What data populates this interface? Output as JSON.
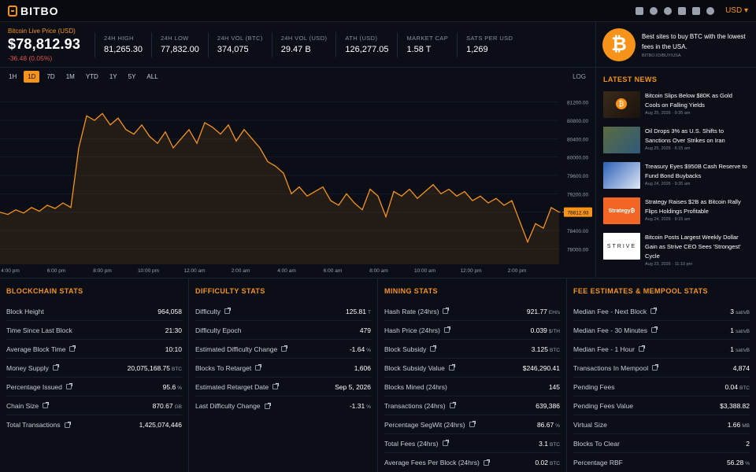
{
  "brand": {
    "name": "BITBO"
  },
  "header": {
    "icons": [
      "calculator-icon",
      "info-icon",
      "link-icon",
      "wrench-icon",
      "chart-icon",
      "gear-icon"
    ],
    "currency": "USD"
  },
  "price": {
    "label": "Bitcoin Live Price (USD)",
    "value": "$78,812.93",
    "change": "-36.48 (0.05%)"
  },
  "stats": [
    {
      "label": "24H HIGH",
      "value": "81,265.30"
    },
    {
      "label": "24H LOW",
      "value": "77,832.00"
    },
    {
      "label": "24H VOL (BTC)",
      "value": "374,075"
    },
    {
      "label": "24H VOL (USD)",
      "value": "29.47 B"
    },
    {
      "label": "ATH (USD)",
      "value": "126,277.05"
    },
    {
      "label": "MARKET CAP",
      "value": "1.58 T"
    },
    {
      "label": "SATS PER USD",
      "value": "1,269"
    }
  ],
  "ranges": [
    "1H",
    "1D",
    "7D",
    "1M",
    "YTD",
    "1Y",
    "5Y",
    "ALL"
  ],
  "active_range": "1D",
  "log_label": "LOG",
  "chart_data": {
    "type": "line",
    "x": [
      0,
      1,
      2,
      3,
      4,
      5,
      6,
      7,
      8,
      9,
      10,
      11,
      12,
      13,
      14,
      15,
      16,
      17,
      18,
      19,
      20,
      21,
      22,
      23,
      24,
      25,
      26,
      27,
      28,
      29,
      30,
      31,
      32,
      33,
      34,
      35,
      36,
      37,
      38,
      39,
      40,
      41,
      42,
      43,
      44,
      45,
      46,
      47,
      48,
      49,
      50,
      51,
      52,
      53,
      54,
      55,
      56,
      57,
      58,
      59,
      60,
      61,
      62,
      63,
      64,
      65,
      66,
      67,
      68,
      69,
      70,
      71
    ],
    "y": [
      78800,
      78750,
      78850,
      78780,
      78900,
      78820,
      78950,
      78880,
      79000,
      78900,
      80200,
      80900,
      80800,
      80950,
      80700,
      80850,
      80600,
      80500,
      80700,
      80450,
      80300,
      80550,
      80200,
      80400,
      80600,
      80300,
      80750,
      80650,
      80500,
      80700,
      80350,
      80600,
      80400,
      80200,
      79900,
      79800,
      79650,
      79200,
      79350,
      79150,
      79250,
      79350,
      79050,
      78950,
      79200,
      79000,
      78850,
      79300,
      79150,
      78700,
      79250,
      79150,
      79300,
      79100,
      79250,
      79400,
      79200,
      79300,
      79150,
      79250,
      79050,
      79150,
      79000,
      79100,
      78950,
      79050,
      78600,
      78150,
      78550,
      78450,
      78900,
      78800
    ],
    "x_ticks": [
      "4:00 pm",
      "6:00 pm",
      "8:00 pm",
      "10:00 pm",
      "12:00 am",
      "2:00 am",
      "4:00 am",
      "6:00 am",
      "8:00 am",
      "10:00 am",
      "12:00 pm",
      "2:00 pm"
    ],
    "y_ticks": [
      "81200.00",
      "80800.00",
      "80400.00",
      "80000.00",
      "79600.00",
      "79200.00",
      "78800.00",
      "78400.00",
      "78000.00"
    ],
    "ylim": [
      77800,
      81400
    ],
    "current_label": "78812.93",
    "line_color": "#f7931a"
  },
  "promo": {
    "title": "Best sites to buy BTC with the lowest fees in the USA.",
    "url": "BITBO.IO/BUY/USA"
  },
  "news": {
    "heading": "LATEST NEWS",
    "items": [
      {
        "title": "Bitcoin Slips Below $80K as Gold Cools on Falling Yields",
        "date": "Aug 25, 2026 · 9:35 am"
      },
      {
        "title": "Oil Drops 3% as U.S. Shifts to Sanctions Over Strikes on Iran",
        "date": "Aug 25, 2026 · 6:15 am"
      },
      {
        "title": "Treasury Eyes $950B Cash Reserve to Fund Bond Buybacks",
        "date": "Aug 24, 2026 · 9:35 am"
      },
      {
        "title": "Strategy Raises $2B as Bitcoin Rally Flips Holdings Profitable",
        "date": "Aug 24, 2026 · 9:15 am",
        "thumb_text": "Strategy₿"
      },
      {
        "title": "Bitcoin Posts Largest Weekly Dollar Gain as Strive CEO Sees 'Strongest' Cycle",
        "date": "Aug 23, 2026 · 11:10 pm",
        "thumb_text": "STRIVE"
      }
    ]
  },
  "panels": [
    {
      "title": "BLOCKCHAIN STATS",
      "rows": [
        {
          "label": "Block Height",
          "value": "964,058",
          "unit": "",
          "link": false
        },
        {
          "label": "Time Since Last Block",
          "value": "21:30",
          "unit": "",
          "link": false
        },
        {
          "label": "Average Block Time",
          "value": "10:10",
          "unit": "",
          "link": true
        },
        {
          "label": "Money Supply",
          "value": "20,075,168.75",
          "unit": "BTC",
          "link": true
        },
        {
          "label": "Percentage Issued",
          "value": "95.6",
          "unit": "%",
          "link": true
        },
        {
          "label": "Chain Size",
          "value": "870.67",
          "unit": "GB",
          "link": true
        },
        {
          "label": "Total Transactions",
          "value": "1,425,074,446",
          "unit": "",
          "link": true
        }
      ]
    },
    {
      "title": "DIFFICULTY STATS",
      "rows": [
        {
          "label": "Difficulty",
          "value": "125.81",
          "unit": "T",
          "link": true
        },
        {
          "label": "Difficulty Epoch",
          "value": "479",
          "unit": "",
          "link": false
        },
        {
          "label": "Estimated Difficulty Change",
          "value": "-1.64",
          "unit": "%",
          "link": true
        },
        {
          "label": "Blocks To Retarget",
          "value": "1,606",
          "unit": "",
          "link": true
        },
        {
          "label": "Estimated Retarget Date",
          "value": "Sep 5, 2026",
          "unit": "",
          "link": true
        },
        {
          "label": "Last Difficulty Change",
          "value": "-1.31",
          "unit": "%",
          "link": true
        }
      ]
    },
    {
      "title": "MINING STATS",
      "rows": [
        {
          "label": "Hash Rate (24hrs)",
          "value": "921.77",
          "unit": "EH/s",
          "link": true
        },
        {
          "label": "Hash Price (24hrs)",
          "value": "0.039",
          "unit": "$/TH",
          "link": true
        },
        {
          "label": "Block Subsidy",
          "value": "3.125",
          "unit": "BTC",
          "link": true
        },
        {
          "label": "Block Subsidy Value",
          "value": "$246,290.41",
          "unit": "",
          "link": true
        },
        {
          "label": "Blocks Mined (24hrs)",
          "value": "145",
          "unit": "",
          "link": false
        },
        {
          "label": "Transactions (24hrs)",
          "value": "639,386",
          "unit": "",
          "link": true
        },
        {
          "label": "Percentage SegWit (24hrs)",
          "value": "86.67",
          "unit": "%",
          "link": true
        },
        {
          "label": "Total Fees (24hrs)",
          "value": "3.1",
          "unit": "BTC",
          "link": true
        },
        {
          "label": "Average Fees Per Block (24hrs)",
          "value": "0.02",
          "unit": "BTC",
          "link": true
        }
      ]
    },
    {
      "title": "FEE ESTIMATES & MEMPOOL STATS",
      "rows": [
        {
          "label": "Median Fee - Next Block",
          "value": "3",
          "unit": "sat/vB",
          "link": true
        },
        {
          "label": "Median Fee - 30 Minutes",
          "value": "1",
          "unit": "sat/vB",
          "link": true
        },
        {
          "label": "Median Fee - 1 Hour",
          "value": "1",
          "unit": "sat/vB",
          "link": true
        },
        {
          "label": "Transactions In Mempool",
          "value": "4,874",
          "unit": "",
          "link": true
        },
        {
          "label": "Pending Fees",
          "value": "0.04",
          "unit": "BTC",
          "link": false
        },
        {
          "label": "Pending Fees Value",
          "value": "$3,388.82",
          "unit": "",
          "link": false
        },
        {
          "label": "Virtual Size",
          "value": "1.66",
          "unit": "MB",
          "link": false
        },
        {
          "label": "Blocks To Clear",
          "value": "2",
          "unit": "",
          "link": false
        },
        {
          "label": "Percentage RBF",
          "value": "56.28",
          "unit": "%",
          "link": false
        }
      ]
    }
  ]
}
